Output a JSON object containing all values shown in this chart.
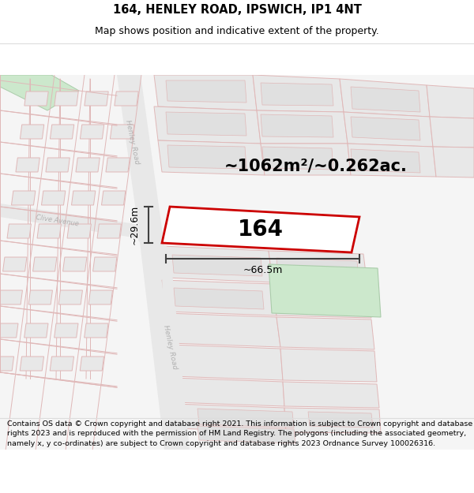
{
  "title": "164, HENLEY ROAD, IPSWICH, IP1 4NT",
  "subtitle": "Map shows position and indicative extent of the property.",
  "footer": "Contains OS data © Crown copyright and database right 2021. This information is subject to Crown copyright and database rights 2023 and is reproduced with the permission of HM Land Registry. The polygons (including the associated geometry, namely x, y co-ordinates) are subject to Crown copyright and database rights 2023 Ordnance Survey 100026316.",
  "area_label": "~1062m²/~0.262ac.",
  "property_label": "164",
  "width_label": "~66.5m",
  "height_label": "~29.6m",
  "bg_color": "#ffffff",
  "map_bg": "#f7f7f7",
  "road_color": "#e8e8e8",
  "parcel_fill": "#e8e8e8",
  "parcel_stroke": "#e0b8b8",
  "green_fill": "#d4e8d4",
  "green_stroke": "#b8ccb8",
  "highlight_stroke": "#cc0000",
  "highlight_fill": "#ffffff",
  "dim_color": "#404040",
  "title_fontsize": 10.5,
  "subtitle_fontsize": 9,
  "footer_fontsize": 6.8,
  "area_fontsize": 15,
  "prop_label_fontsize": 20,
  "dim_fontsize": 9
}
